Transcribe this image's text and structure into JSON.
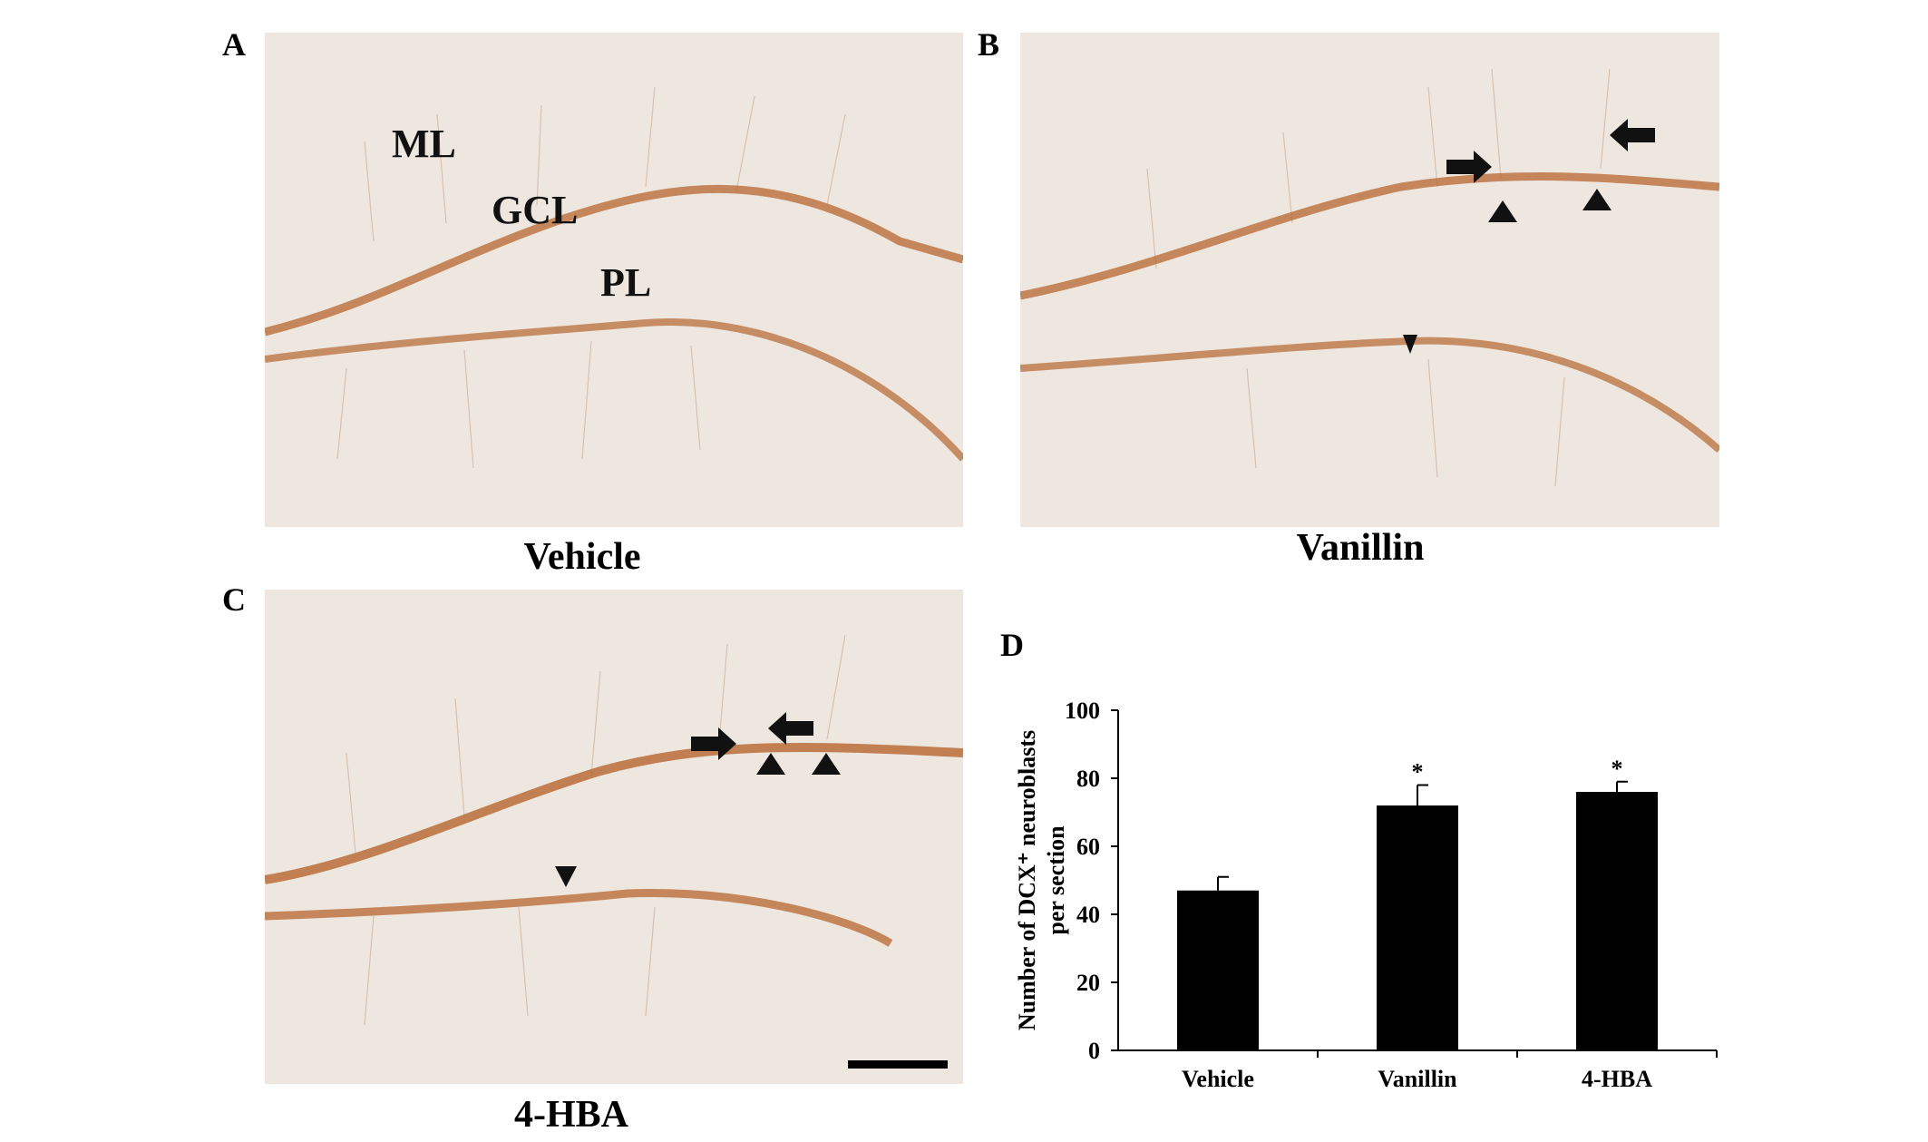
{
  "panels": {
    "a": {
      "letter": "A",
      "caption": "Vehicle",
      "regions": {
        "ml": "ML",
        "gcl": "GCL",
        "pl": "PL"
      }
    },
    "b": {
      "letter": "B",
      "caption": "Vanillin"
    },
    "c": {
      "letter": "C",
      "caption": "4-HBA"
    },
    "d": {
      "letter": "D"
    }
  },
  "colors": {
    "tissue_bg": "#ece6de",
    "stain": "#b5652e",
    "bar": "#000000"
  },
  "chart_data": {
    "type": "bar",
    "categories": [
      "Vehicle",
      "Vanillin",
      "4-HBA"
    ],
    "values": [
      47,
      72,
      76
    ],
    "error": [
      4,
      6,
      3
    ],
    "significance": [
      "",
      "*",
      "*"
    ],
    "ylabel_line1": "Number of DCX⁺ neuroblasts",
    "ylabel_line2": "per section",
    "ylim": [
      0,
      100
    ],
    "yticks": [
      0,
      20,
      40,
      60,
      80,
      100
    ],
    "grid": false
  }
}
